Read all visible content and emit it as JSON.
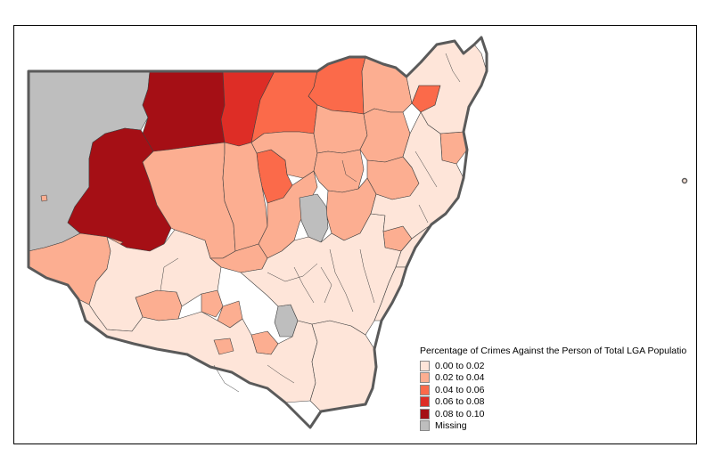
{
  "map": {
    "legend": {
      "title": "Percentage of Crimes Against the Person of Total LGA Populatio",
      "items": [
        {
          "label": "0.00 to 0.02",
          "color": "#FEE5D9"
        },
        {
          "label": "0.02 to 0.04",
          "color": "#FCAE91"
        },
        {
          "label": "0.04 to 0.06",
          "color": "#FB6A4A"
        },
        {
          "label": "0.06 to 0.08",
          "color": "#DE2D26"
        },
        {
          "label": "0.08 to 0.10",
          "color": "#A50F15"
        },
        {
          "label": "Missing",
          "color": "#BEBEBE"
        }
      ]
    },
    "border_color": "#5A5A5A"
  }
}
